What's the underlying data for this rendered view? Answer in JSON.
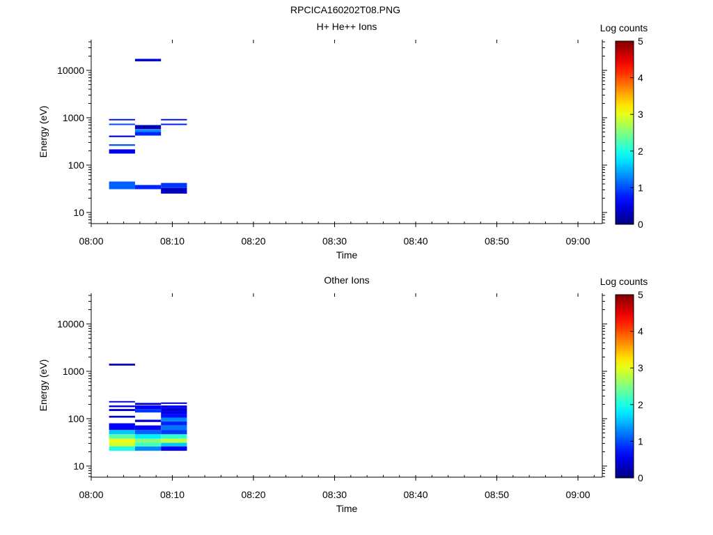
{
  "figure_title": "RPCICA160202T08.PNG",
  "chart_data": [
    {
      "type": "heatmap",
      "title": "H+ He++ Ions",
      "xlabel": "Time",
      "ylabel": "Energy (eV)",
      "x_ticks": [
        "08:00",
        "08:10",
        "08:20",
        "08:30",
        "08:40",
        "08:50",
        "09:00"
      ],
      "x_range": [
        "08:00",
        "09:03"
      ],
      "y_scale": "log",
      "y_ticks": [
        "10",
        "100",
        "1000",
        "10000"
      ],
      "y_range": [
        5.6,
        45000
      ],
      "colorbar": {
        "label": "Log counts",
        "ticks": [
          "0",
          "1",
          "2",
          "3",
          "4",
          "5"
        ],
        "range": [
          0,
          5
        ],
        "colormap": "jet"
      },
      "cells": [
        {
          "t0": "08:02.2",
          "t1": "08:05.4",
          "e0": 31,
          "e1": 45,
          "value": 1.1
        },
        {
          "t0": "08:02.2",
          "t1": "08:05.4",
          "e0": 175,
          "e1": 215,
          "value": 0.5
        },
        {
          "t0": "08:02.2",
          "t1": "08:05.4",
          "e0": 255,
          "e1": 275,
          "value": 1.0
        },
        {
          "t0": "08:02.2",
          "t1": "08:05.4",
          "e0": 390,
          "e1": 420,
          "value": 0.6
        },
        {
          "t0": "08:02.2",
          "t1": "08:05.4",
          "e0": 700,
          "e1": 750,
          "value": 1.0
        },
        {
          "t0": "08:02.2",
          "t1": "08:05.4",
          "e0": 880,
          "e1": 940,
          "value": 0.7
        },
        {
          "t0": "08:05.4",
          "t1": "08:08.6",
          "e0": 31,
          "e1": 38,
          "value": 0.8
        },
        {
          "t0": "08:05.4",
          "t1": "08:08.6",
          "e0": 420,
          "e1": 500,
          "value": 0.8
        },
        {
          "t0": "08:05.4",
          "t1": "08:08.6",
          "e0": 500,
          "e1": 560,
          "value": 1.3
        },
        {
          "t0": "08:05.4",
          "t1": "08:08.6",
          "e0": 570,
          "e1": 700,
          "value": 0.3
        },
        {
          "t0": "08:05.4",
          "t1": "08:08.6",
          "e0": 15500,
          "e1": 17500,
          "value": 0.4
        },
        {
          "t0": "08:08.6",
          "t1": "08:11.8",
          "e0": 25,
          "e1": 33,
          "value": 0.3
        },
        {
          "t0": "08:08.6",
          "t1": "08:11.8",
          "e0": 33,
          "e1": 42,
          "value": 0.9
        },
        {
          "t0": "08:08.6",
          "t1": "08:11.8",
          "e0": 700,
          "e1": 750,
          "value": 0.8
        },
        {
          "t0": "08:08.6",
          "t1": "08:11.8",
          "e0": 880,
          "e1": 940,
          "value": 0.7
        }
      ]
    },
    {
      "type": "heatmap",
      "title": "Other Ions",
      "xlabel": "Time",
      "ylabel": "Energy (eV)",
      "x_ticks": [
        "08:00",
        "08:10",
        "08:20",
        "08:30",
        "08:40",
        "08:50",
        "09:00"
      ],
      "x_range": [
        "08:00",
        "09:03"
      ],
      "y_scale": "log",
      "y_ticks": [
        "10",
        "100",
        "1000",
        "10000"
      ],
      "y_range": [
        5.6,
        45000
      ],
      "colorbar": {
        "label": "Log counts",
        "ticks": [
          "0",
          "1",
          "2",
          "3",
          "4",
          "5"
        ],
        "range": [
          0,
          5
        ],
        "colormap": "jet"
      },
      "cells": [
        {
          "t0": "08:02.2",
          "t1": "08:05.4",
          "e0": 21,
          "e1": 26,
          "value": 2.0
        },
        {
          "t0": "08:02.2",
          "t1": "08:05.4",
          "e0": 26,
          "e1": 31,
          "value": 2.9
        },
        {
          "t0": "08:02.2",
          "t1": "08:05.4",
          "e0": 31,
          "e1": 38,
          "value": 3.0
        },
        {
          "t0": "08:02.2",
          "t1": "08:05.4",
          "e0": 38,
          "e1": 47,
          "value": 2.3
        },
        {
          "t0": "08:02.2",
          "t1": "08:05.4",
          "e0": 47,
          "e1": 58,
          "value": 1.6
        },
        {
          "t0": "08:02.2",
          "t1": "08:05.4",
          "e0": 58,
          "e1": 80,
          "value": 0.6
        },
        {
          "t0": "08:02.2",
          "t1": "08:05.4",
          "e0": 105,
          "e1": 115,
          "value": 0.4
        },
        {
          "t0": "08:02.2",
          "t1": "08:05.4",
          "e0": 145,
          "e1": 160,
          "value": 0.4
        },
        {
          "t0": "08:02.2",
          "t1": "08:05.4",
          "e0": 175,
          "e1": 190,
          "value": 0.4
        },
        {
          "t0": "08:02.2",
          "t1": "08:05.4",
          "e0": 220,
          "e1": 235,
          "value": 0.4
        },
        {
          "t0": "08:02.2",
          "t1": "08:05.4",
          "e0": 1320,
          "e1": 1450,
          "value": 0.3
        },
        {
          "t0": "08:05.4",
          "t1": "08:08.6",
          "e0": 21,
          "e1": 26,
          "value": 1.3
        },
        {
          "t0": "08:05.4",
          "t1": "08:08.6",
          "e0": 26,
          "e1": 31,
          "value": 2.2
        },
        {
          "t0": "08:05.4",
          "t1": "08:08.6",
          "e0": 31,
          "e1": 38,
          "value": 2.5
        },
        {
          "t0": "08:05.4",
          "t1": "08:08.6",
          "e0": 38,
          "e1": 47,
          "value": 1.8
        },
        {
          "t0": "08:05.4",
          "t1": "08:08.6",
          "e0": 47,
          "e1": 58,
          "value": 1.1
        },
        {
          "t0": "08:05.4",
          "t1": "08:08.6",
          "e0": 58,
          "e1": 72,
          "value": 0.6
        },
        {
          "t0": "08:05.4",
          "t1": "08:08.6",
          "e0": 85,
          "e1": 95,
          "value": 0.4
        },
        {
          "t0": "08:05.4",
          "t1": "08:08.6",
          "e0": 135,
          "e1": 160,
          "value": 0.9
        },
        {
          "t0": "08:05.4",
          "t1": "08:08.6",
          "e0": 160,
          "e1": 190,
          "value": 0.6
        },
        {
          "t0": "08:05.4",
          "t1": "08:08.6",
          "e0": 195,
          "e1": 215,
          "value": 0.4
        },
        {
          "t0": "08:08.6",
          "t1": "08:11.8",
          "e0": 21,
          "e1": 26,
          "value": 0.6
        },
        {
          "t0": "08:08.6",
          "t1": "08:11.8",
          "e0": 26,
          "e1": 31,
          "value": 1.6
        },
        {
          "t0": "08:08.6",
          "t1": "08:11.8",
          "e0": 31,
          "e1": 38,
          "value": 2.8
        },
        {
          "t0": "08:08.6",
          "t1": "08:11.8",
          "e0": 38,
          "e1": 47,
          "value": 2.1
        },
        {
          "t0": "08:08.6",
          "t1": "08:11.8",
          "e0": 47,
          "e1": 58,
          "value": 0.9
        },
        {
          "t0": "08:08.6",
          "t1": "08:11.8",
          "e0": 58,
          "e1": 72,
          "value": 1.2
        },
        {
          "t0": "08:08.6",
          "t1": "08:11.8",
          "e0": 72,
          "e1": 88,
          "value": 0.8
        },
        {
          "t0": "08:08.6",
          "t1": "08:11.8",
          "e0": 88,
          "e1": 105,
          "value": 1.3
        },
        {
          "t0": "08:08.6",
          "t1": "08:11.8",
          "e0": 105,
          "e1": 125,
          "value": 0.7
        },
        {
          "t0": "08:08.6",
          "t1": "08:11.8",
          "e0": 125,
          "e1": 150,
          "value": 0.5
        },
        {
          "t0": "08:08.6",
          "t1": "08:11.8",
          "e0": 150,
          "e1": 170,
          "value": 0.4
        },
        {
          "t0": "08:08.6",
          "t1": "08:11.8",
          "e0": 170,
          "e1": 190,
          "value": 0.6
        },
        {
          "t0": "08:08.6",
          "t1": "08:11.8",
          "e0": 205,
          "e1": 220,
          "value": 0.4
        }
      ]
    }
  ]
}
